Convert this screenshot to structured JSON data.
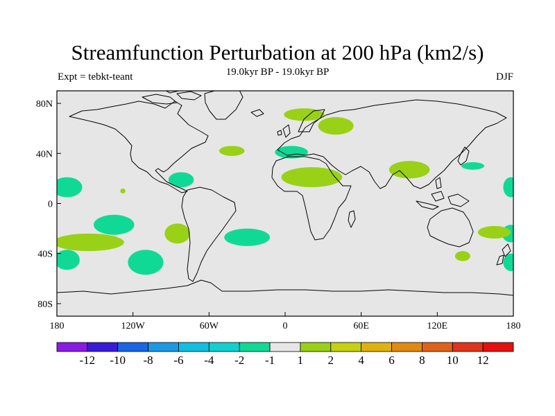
{
  "header": {
    "title": "Streamfunction Perturbation at 200 hPa (km2/s)",
    "subtitle": "19.0kyr BP - 19.0kyr BP",
    "left_label": "Expt = tebkt-teant",
    "right_label": "DJF"
  },
  "map": {
    "projection": "cylindrical-equidistant",
    "extent": {
      "lon": [
        -180,
        180
      ],
      "lat": [
        -90,
        90
      ]
    },
    "land_ocean_fill": "#e6e6e6",
    "coastline_color": "#000000",
    "x_ticks": [
      {
        "lon": -180,
        "label": "180"
      },
      {
        "lon": -120,
        "label": "120W"
      },
      {
        "lon": -60,
        "label": "60W"
      },
      {
        "lon": 0,
        "label": "0"
      },
      {
        "lon": 60,
        "label": "60E"
      },
      {
        "lon": 120,
        "label": "120E"
      },
      {
        "lon": 180,
        "label": "180"
      }
    ],
    "y_ticks": [
      {
        "lat": 80,
        "label": "80N"
      },
      {
        "lat": 40,
        "label": "40N"
      },
      {
        "lat": 0,
        "label": "0"
      },
      {
        "lat": -40,
        "label": "40S"
      },
      {
        "lat": -80,
        "label": "80S"
      }
    ],
    "anomaly_regions": [
      {
        "sign": "negative",
        "level": "-2",
        "color": "#10d996",
        "center": [
          -172,
          13
        ],
        "radius": [
          12,
          8
        ]
      },
      {
        "sign": "negative",
        "level": "-2",
        "color": "#10d996",
        "center": [
          178,
          13
        ],
        "radius": [
          6,
          8
        ]
      },
      {
        "sign": "positive",
        "level": "1",
        "color": "#99d116",
        "center": [
          -128,
          10
        ],
        "radius": [
          2,
          2
        ]
      },
      {
        "sign": "negative",
        "level": "-2",
        "color": "#10d996",
        "center": [
          -135,
          -17
        ],
        "radius": [
          16,
          8
        ]
      },
      {
        "sign": "positive",
        "level": "1",
        "color": "#99d116",
        "center": [
          -155,
          -31
        ],
        "radius": [
          28,
          7
        ]
      },
      {
        "sign": "negative",
        "level": "-2",
        "color": "#10d996",
        "center": [
          -172,
          -45
        ],
        "radius": [
          10,
          8
        ]
      },
      {
        "sign": "negative",
        "level": "-2",
        "color": "#10d996",
        "center": [
          -110,
          -47
        ],
        "radius": [
          14,
          10
        ]
      },
      {
        "sign": "positive",
        "level": "1",
        "color": "#99d116",
        "center": [
          -85,
          -24
        ],
        "radius": [
          10,
          8
        ]
      },
      {
        "sign": "negative",
        "level": "-2",
        "color": "#10d996",
        "center": [
          -30,
          -27
        ],
        "radius": [
          18,
          7
        ]
      },
      {
        "sign": "negative",
        "level": "-2",
        "color": "#10d996",
        "center": [
          -82,
          19
        ],
        "radius": [
          10,
          6
        ]
      },
      {
        "sign": "positive",
        "level": "1",
        "color": "#99d116",
        "center": [
          -42,
          42
        ],
        "radius": [
          10,
          4
        ]
      },
      {
        "sign": "negative",
        "level": "-2",
        "color": "#10d996",
        "center": [
          5,
          41
        ],
        "radius": [
          13,
          5
        ]
      },
      {
        "sign": "positive",
        "level": "1",
        "color": "#99d116",
        "center": [
          21,
          21
        ],
        "radius": [
          24,
          8
        ]
      },
      {
        "sign": "positive",
        "level": "1",
        "color": "#99d116",
        "center": [
          15,
          71
        ],
        "radius": [
          16,
          5
        ]
      },
      {
        "sign": "positive",
        "level": "1",
        "color": "#99d116",
        "center": [
          40,
          62
        ],
        "radius": [
          14,
          7
        ]
      },
      {
        "sign": "positive",
        "level": "1",
        "color": "#99d116",
        "center": [
          98,
          27
        ],
        "radius": [
          16,
          7
        ]
      },
      {
        "sign": "negative",
        "level": "-2",
        "color": "#10d996",
        "center": [
          148,
          30
        ],
        "radius": [
          9,
          3
        ]
      },
      {
        "sign": "negative",
        "level": "-2",
        "color": "#10d996",
        "center": [
          178,
          -24
        ],
        "radius": [
          7,
          7
        ]
      },
      {
        "sign": "positive",
        "level": "1",
        "color": "#99d116",
        "center": [
          165,
          -23
        ],
        "radius": [
          13,
          5
        ]
      },
      {
        "sign": "negative",
        "level": "-2",
        "color": "#10d996",
        "center": [
          178,
          -47
        ],
        "radius": [
          6,
          7
        ]
      },
      {
        "sign": "positive",
        "level": "1",
        "color": "#99d116",
        "center": [
          140,
          -42
        ],
        "radius": [
          6,
          4
        ]
      }
    ]
  },
  "colorbar": {
    "colors": [
      "#8c1ae6",
      "#3a1ad9",
      "#1a66e6",
      "#1a99e6",
      "#12bfe0",
      "#10d0d0",
      "#10d996",
      "#e6e6e6",
      "#99d116",
      "#c6d10f",
      "#e0b10f",
      "#e08a12",
      "#e0621a",
      "#e0341a",
      "#e60f0f"
    ],
    "labels": [
      "-12",
      "-10",
      "-8",
      "-6",
      "-4",
      "-2",
      "-1",
      "1",
      "2",
      "4",
      "6",
      "8",
      "10",
      "12"
    ]
  }
}
